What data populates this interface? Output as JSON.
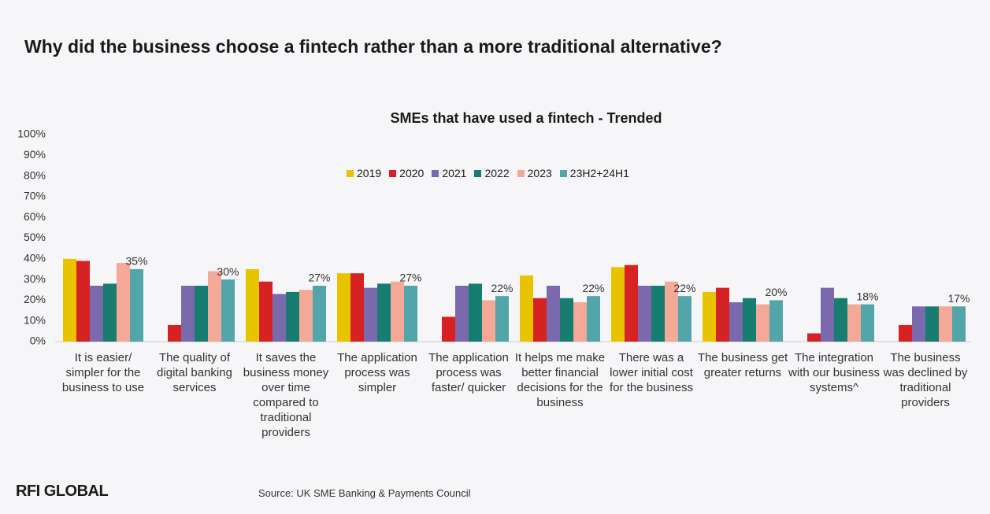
{
  "chart_data": {
    "type": "bar",
    "title": "Why did the business choose a fintech rather than a more traditional alternative?",
    "subtitle": "SMEs that have used a fintech - Trended",
    "source": "Source: UK SME Banking & Payments Council",
    "logo": "RFI GLOBAL",
    "categories": [
      "It is easier/ simpler for the business to use",
      "The quality of digital banking services",
      "It saves the business money over time compared to traditional providers",
      "The application process was simpler",
      "The application process was faster/ quicker",
      "It helps me make better financial decisions for the business",
      "There was a lower initial cost for the business",
      "The business get greater returns",
      "The integration with our business systems^",
      "The business was declined by traditional providers"
    ],
    "series": [
      {
        "name": "2019",
        "color": "#e8c300",
        "values": [
          40,
          null,
          35,
          33,
          null,
          32,
          36,
          24,
          null,
          null
        ]
      },
      {
        "name": "2020",
        "color": "#d62222",
        "values": [
          39,
          8,
          29,
          33,
          12,
          21,
          37,
          26,
          4,
          8
        ]
      },
      {
        "name": "2021",
        "color": "#7b69ae",
        "values": [
          27,
          27,
          23,
          26,
          27,
          27,
          27,
          19,
          26,
          17
        ]
      },
      {
        "name": "2022",
        "color": "#177d70",
        "values": [
          28,
          27,
          24,
          28,
          28,
          21,
          27,
          21,
          21,
          17
        ]
      },
      {
        "name": "2023",
        "color": "#f3a898",
        "values": [
          38,
          34,
          25,
          29,
          20,
          19,
          29,
          18,
          18,
          17
        ]
      },
      {
        "name": "23H2+24H1",
        "color": "#52a6a9",
        "values": [
          35,
          30,
          27,
          27,
          22,
          22,
          22,
          20,
          18,
          17
        ],
        "value_labels": [
          "35%",
          "30%",
          "27%",
          "27%",
          "22%",
          "22%",
          "22%",
          "20%",
          "18%",
          "17%"
        ]
      }
    ],
    "ylim": [
      0,
      100
    ],
    "yticks": [
      {
        "value": 0,
        "label": "0%"
      },
      {
        "value": 10,
        "label": "10%"
      },
      {
        "value": 20,
        "label": "20%"
      },
      {
        "value": 30,
        "label": "30%"
      },
      {
        "value": 40,
        "label": "40%"
      },
      {
        "value": 50,
        "label": "50%"
      },
      {
        "value": 60,
        "label": "60%"
      },
      {
        "value": 70,
        "label": "70%"
      },
      {
        "value": 80,
        "label": "80%"
      },
      {
        "value": 90,
        "label": "90%"
      },
      {
        "value": 100,
        "label": "100%"
      }
    ],
    "grid": false
  }
}
